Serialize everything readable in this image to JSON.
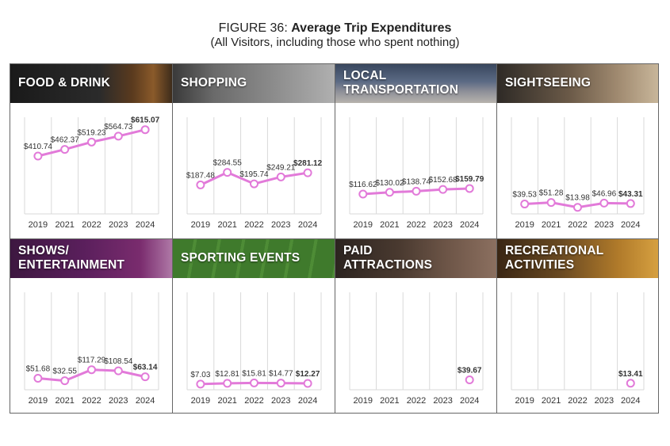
{
  "figure": {
    "prefix": "FIGURE 36: ",
    "title": "Average Trip Expenditures",
    "subtitle": "(All Visitors, including those who spent nothing)"
  },
  "colors": {
    "line": "#e27ad9",
    "grid": "#d9d9d9",
    "text": "#333333"
  },
  "chart_data": [
    {
      "type": "line",
      "title": "FOOD & DRINK",
      "categories": [
        "2019",
        "2021",
        "2022",
        "2023",
        "2024"
      ],
      "values": [
        410.74,
        462.37,
        519.23,
        564.73,
        615.07
      ],
      "labels": [
        "$410.74",
        "$462.37",
        "$519.23",
        "$564.73",
        "$615.07"
      ],
      "banner_theme": "dark-food"
    },
    {
      "type": "line",
      "title": "SHOPPING",
      "categories": [
        "2019",
        "2021",
        "2022",
        "2023",
        "2024"
      ],
      "values": [
        187.48,
        284.55,
        195.74,
        249.21,
        281.12
      ],
      "labels": [
        "$187.48",
        "$284.55",
        "$195.74",
        "$249.21",
        "$281.12"
      ],
      "banner_theme": "gray-shopping"
    },
    {
      "type": "line",
      "title": "LOCAL\nTRANSPORTATION",
      "categories": [
        "2019",
        "2021",
        "2022",
        "2023",
        "2024"
      ],
      "values": [
        116.62,
        130.02,
        138.74,
        152.68,
        159.79
      ],
      "labels": [
        "$116.62",
        "$130.02",
        "$138.74",
        "$152.68",
        "$159.79"
      ],
      "banner_theme": "city-street"
    },
    {
      "type": "line",
      "title": "SIGHTSEEING",
      "categories": [
        "2019",
        "2021",
        "2022",
        "2023",
        "2024"
      ],
      "values": [
        39.53,
        51.28,
        13.98,
        46.96,
        43.31
      ],
      "labels": [
        "$39.53",
        "$51.28",
        "$13.98",
        "$46.96",
        "$43.31"
      ],
      "banner_theme": "warm-sightseeing"
    },
    {
      "type": "line",
      "title": "SHOWS/\nENTERTAINMENT",
      "categories": [
        "2019",
        "2021",
        "2022",
        "2023",
        "2024"
      ],
      "values": [
        51.68,
        32.55,
        117.29,
        108.54,
        63.14
      ],
      "labels": [
        "$51.68",
        "$32.55",
        "$117.29",
        "$108.54",
        "$63.14"
      ],
      "banner_theme": "purple-stage"
    },
    {
      "type": "line",
      "title": "SPORTING EVENTS",
      "categories": [
        "2019",
        "2021",
        "2022",
        "2023",
        "2024"
      ],
      "values": [
        7.03,
        12.81,
        15.81,
        14.77,
        12.27
      ],
      "labels": [
        "$7.03",
        "$12.81",
        "$15.81",
        "$14.77",
        "$12.27"
      ],
      "banner_theme": "green-field"
    },
    {
      "type": "line",
      "title": "PAID\nATTRACTIONS",
      "categories": [
        "2019",
        "2021",
        "2022",
        "2023",
        "2024"
      ],
      "values": [
        null,
        null,
        null,
        null,
        39.67
      ],
      "labels": [
        "",
        "",
        "",
        "",
        "$39.67"
      ],
      "banner_theme": "brown-attractions"
    },
    {
      "type": "line",
      "title": "RECREATIONAL\nACTIVITIES",
      "categories": [
        "2019",
        "2021",
        "2022",
        "2023",
        "2024"
      ],
      "values": [
        null,
        null,
        null,
        null,
        13.41
      ],
      "labels": [
        "",
        "",
        "",
        "",
        "$13.41"
      ],
      "banner_theme": "orange-recreation"
    }
  ]
}
